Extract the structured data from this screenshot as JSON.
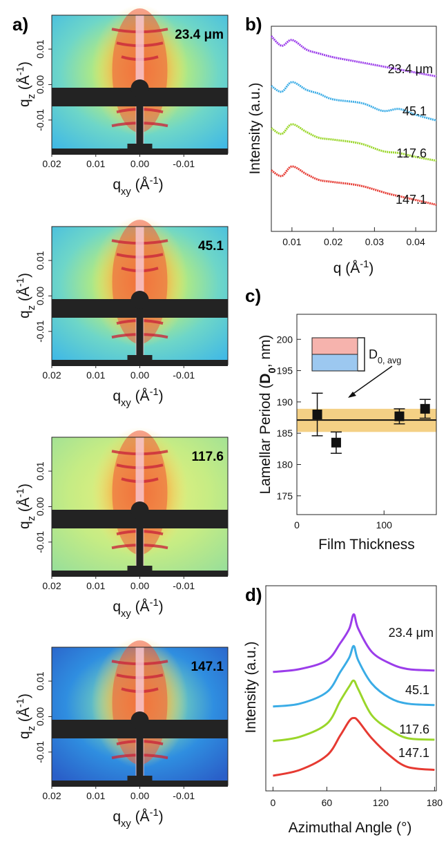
{
  "panel_labels": {
    "a": "a)",
    "b": "b)",
    "c": "c)",
    "d": "d)"
  },
  "colors": {
    "purple": "#9b3dea",
    "blue": "#3aace6",
    "green": "#9ad62a",
    "red": "#e63a32",
    "band": "#f0c05c",
    "inset_top": "#f6b3ad",
    "inset_bottom": "#9cc8f0"
  },
  "chart_data": [
    {
      "type": "heatmap",
      "panel": "a",
      "xlabel": "q_xy (Å^-1)",
      "ylabel": "q_z (Å^-1)",
      "xticks": [
        "0.02",
        "0.01",
        "0.00",
        "-0.01"
      ],
      "yticks": [
        "0.01",
        "0.00",
        "-0.01"
      ],
      "xlim": [
        0.02,
        -0.02
      ],
      "ylim": [
        -0.019,
        0.018
      ],
      "images": [
        {
          "label": "23.4 μm",
          "background": "cyan-green"
        },
        {
          "label": "45.1",
          "background": "cyan-green"
        },
        {
          "label": "117.6",
          "background": "green"
        },
        {
          "label": "147.1",
          "background": "blue"
        }
      ]
    },
    {
      "type": "line",
      "panel": "b",
      "xlabel": "q (Å^-1)",
      "ylabel": "Intensity (a.u.)",
      "xlim": [
        0.005,
        0.045
      ],
      "xticks": [
        "0.01",
        "0.02",
        "0.03",
        "0.04"
      ],
      "series": [
        {
          "name": "23.4 μm",
          "color": "#9b3dea",
          "x": [
            0.005,
            0.0075,
            0.01,
            0.0135,
            0.0165,
            0.02,
            0.025,
            0.03,
            0.035,
            0.04,
            0.045
          ],
          "y": [
            9.9,
            9.4,
            9.7,
            9.2,
            9.0,
            8.8,
            8.6,
            8.4,
            8.2,
            8.0,
            7.8
          ]
        },
        {
          "name": "45.1",
          "color": "#3aace6",
          "x": [
            0.005,
            0.0075,
            0.01,
            0.0135,
            0.0165,
            0.02,
            0.027,
            0.032,
            0.036,
            0.04,
            0.045
          ],
          "y": [
            7.3,
            7.0,
            7.5,
            7.1,
            6.9,
            6.6,
            6.4,
            6.0,
            6.1,
            5.8,
            5.5
          ]
        },
        {
          "name": "117.6",
          "color": "#9ad62a",
          "x": [
            0.005,
            0.0075,
            0.01,
            0.0135,
            0.0165,
            0.02,
            0.0265,
            0.032,
            0.036,
            0.04,
            0.045
          ],
          "y": [
            5.1,
            4.8,
            5.3,
            4.9,
            4.6,
            4.5,
            4.3,
            3.9,
            3.8,
            3.6,
            3.4
          ]
        },
        {
          "name": "147.1",
          "color": "#e63a32",
          "x": [
            0.005,
            0.0075,
            0.01,
            0.0135,
            0.0165,
            0.0195,
            0.0265,
            0.033,
            0.037,
            0.041,
            0.045
          ],
          "y": [
            2.9,
            2.6,
            3.1,
            2.7,
            2.4,
            2.3,
            2.1,
            1.7,
            1.5,
            1.3,
            1.1
          ]
        }
      ],
      "label_order": [
        "23.4 μm",
        "45.1",
        "117.6",
        "147.1"
      ]
    },
    {
      "type": "scatter",
      "panel": "c",
      "xlabel": "Film Thickness",
      "ylabel": "Lamellar Period (D0, nm)",
      "xlim": [
        0,
        160
      ],
      "ylim": [
        172,
        204
      ],
      "xticks": [
        0,
        100
      ],
      "yticks": [
        175,
        180,
        185,
        190,
        195,
        200
      ],
      "points": [
        {
          "x": 23.4,
          "y": 188.0,
          "err": 3.4
        },
        {
          "x": 45.1,
          "y": 183.5,
          "err": 1.7
        },
        {
          "x": 117.6,
          "y": 187.7,
          "err": 1.2
        },
        {
          "x": 147.1,
          "y": 188.9,
          "err": 1.5
        }
      ],
      "mean_line": 187.1,
      "band": [
        185.2,
        188.9
      ],
      "annotation": "D0, avg"
    },
    {
      "type": "line",
      "panel": "d",
      "xlabel": "Azimuthal Angle (°)",
      "ylabel": "Intensity (a.u.)",
      "xlim": [
        -8,
        182
      ],
      "xticks": [
        0,
        60,
        120,
        180
      ],
      "series": [
        {
          "name": "23.4 μm",
          "color": "#9b3dea",
          "x": [
            0,
            30,
            60,
            75,
            85,
            90,
            95,
            110,
            130,
            150,
            180
          ],
          "y": [
            3.6,
            3.7,
            4.0,
            4.6,
            5.1,
            5.6,
            5.1,
            4.3,
            3.9,
            3.7,
            3.65
          ]
        },
        {
          "name": "45.1",
          "color": "#3aace6",
          "x": [
            0,
            30,
            60,
            75,
            85,
            90,
            95,
            110,
            130,
            150,
            180
          ],
          "y": [
            2.4,
            2.5,
            2.9,
            3.6,
            4.1,
            4.5,
            4.0,
            3.2,
            2.7,
            2.5,
            2.45
          ]
        },
        {
          "name": "117.6",
          "color": "#9ad62a",
          "x": [
            0,
            30,
            60,
            75,
            85,
            90,
            95,
            110,
            130,
            150,
            180
          ],
          "y": [
            1.2,
            1.35,
            1.8,
            2.6,
            3.1,
            3.3,
            3.0,
            2.1,
            1.6,
            1.3,
            1.25
          ]
        },
        {
          "name": "147.1",
          "color": "#e63a32",
          "x": [
            0,
            30,
            60,
            75,
            85,
            90,
            95,
            110,
            130,
            150,
            180
          ],
          "y": [
            0.0,
            0.2,
            0.7,
            1.4,
            1.9,
            2.0,
            1.9,
            1.3,
            0.7,
            0.3,
            0.2
          ]
        }
      ],
      "label_order": [
        "23.4 μm",
        "45.1",
        "117.6",
        "147.1"
      ]
    }
  ]
}
